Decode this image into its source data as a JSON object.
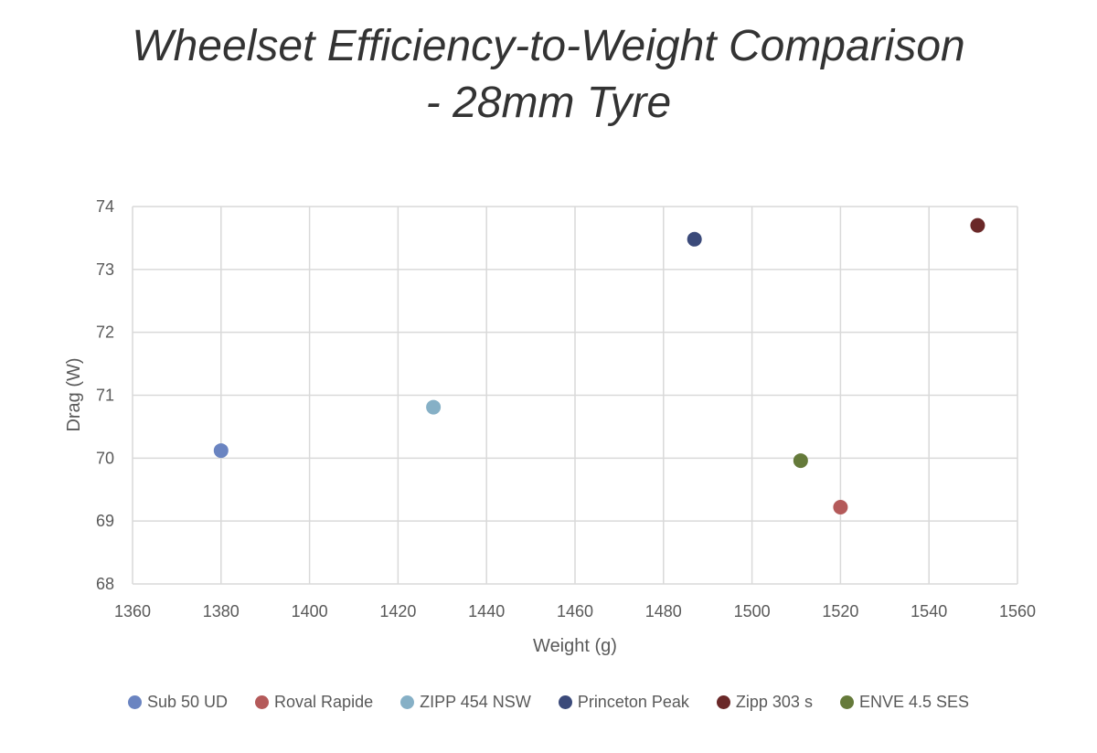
{
  "chart_data": {
    "type": "scatter",
    "title_lines": [
      "Wheelset Efficiency-to-Weight Comparison",
      "- 28mm Tyre"
    ],
    "xlabel": "Weight (g)",
    "ylabel": "Drag (W)",
    "xlim": [
      1360,
      1560
    ],
    "ylim": [
      68,
      74
    ],
    "xticks": [
      1360,
      1380,
      1400,
      1420,
      1440,
      1460,
      1480,
      1500,
      1520,
      1540,
      1560
    ],
    "yticks": [
      68,
      69,
      70,
      71,
      72,
      73,
      74
    ],
    "grid": true,
    "legend_position": "bottom",
    "series": [
      {
        "name": "Sub 50 UD",
        "color": "#6a84c1",
        "x": 1380,
        "y": 70.12
      },
      {
        "name": "Roval Rapide",
        "color": "#b45a5a",
        "x": 1520,
        "y": 69.22
      },
      {
        "name": "ZIPP 454 NSW",
        "color": "#86b0c6",
        "x": 1428,
        "y": 70.81
      },
      {
        "name": "Princeton Peak",
        "color": "#3b4a7a",
        "x": 1487,
        "y": 73.48
      },
      {
        "name": "Zipp 303 s",
        "color": "#6a2828",
        "x": 1551,
        "y": 73.7
      },
      {
        "name": "ENVE 4.5 SES",
        "color": "#657a3a",
        "x": 1511,
        "y": 69.96
      }
    ]
  }
}
